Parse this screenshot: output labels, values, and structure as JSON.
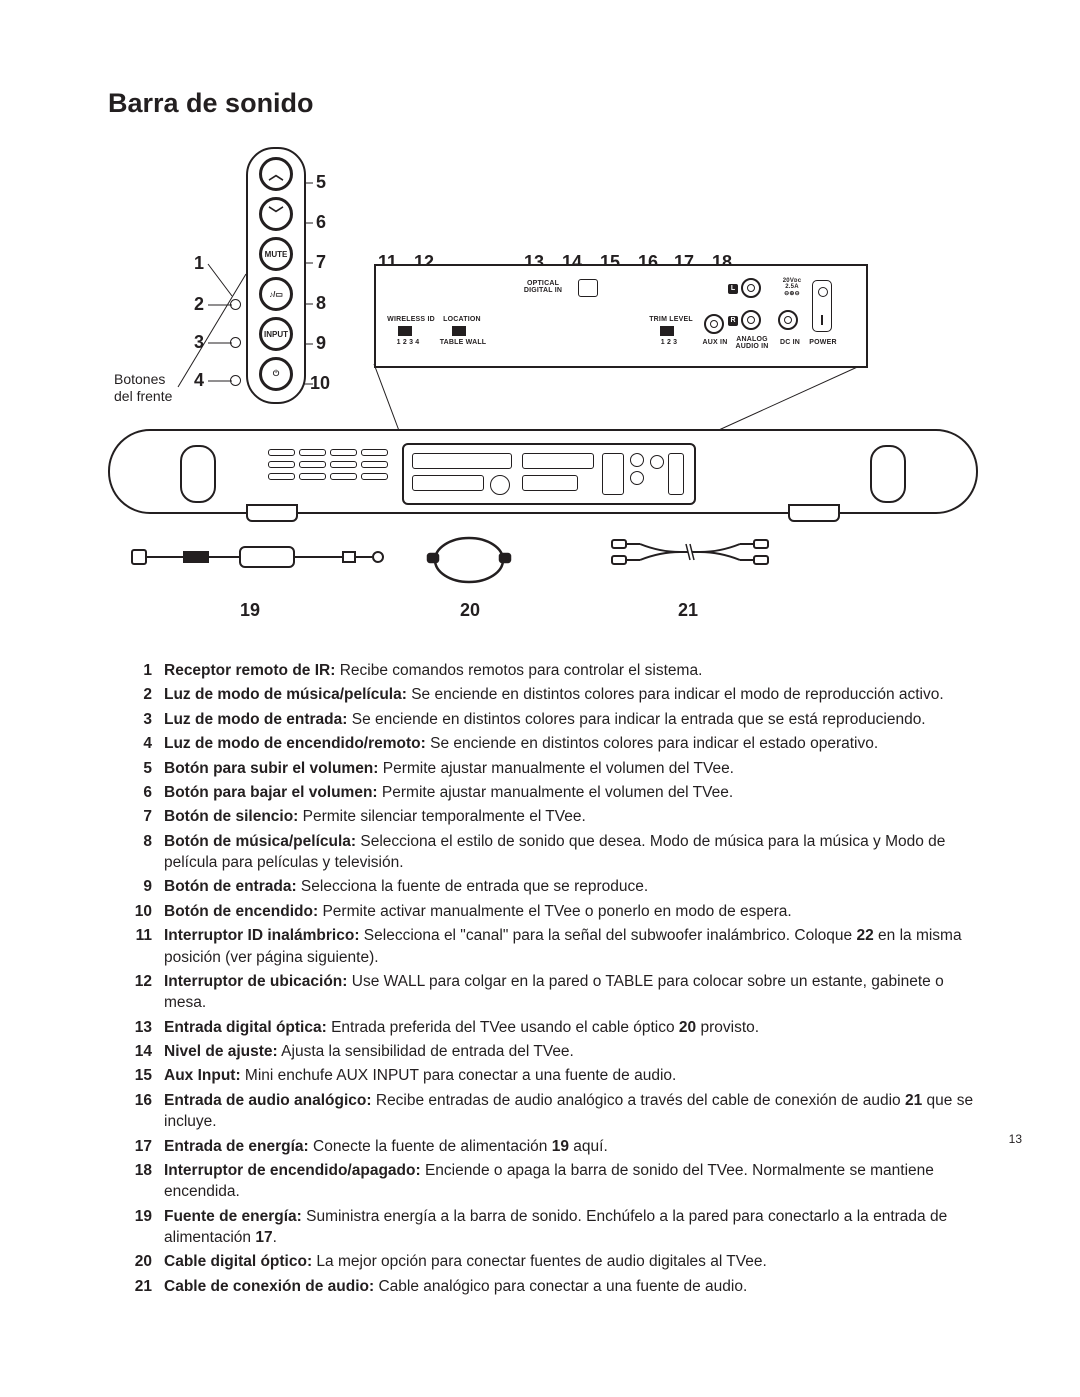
{
  "title": "Barra de sonido",
  "page_number": "13",
  "front_label": "Botones\ndel frente",
  "callouts_left": [
    "1",
    "2",
    "3",
    "4"
  ],
  "callouts_right_of_buttons": [
    "5",
    "6",
    "7",
    "8",
    "9",
    "10"
  ],
  "callouts_top": [
    "11",
    "12",
    "13",
    "14",
    "15",
    "16",
    "17",
    "18"
  ],
  "acc_numbers": [
    "19",
    "20",
    "21"
  ],
  "back_panel_labels": {
    "optical_digital_in": "OPTICAL\nDIGITAL IN",
    "wireless_id": "WIRELESS ID",
    "wireless_id_pos": "1 2 3 4",
    "location": "LOCATION",
    "location_pos": "TABLE   WALL",
    "trim_level": "TRIM LEVEL",
    "trim_level_pos": "1 2 3",
    "aux_in": "AUX IN",
    "analog_audio_in": "ANALOG\nAUDIO IN",
    "dc_in": "DC IN",
    "power": "POWER",
    "dc_spec": "20Vᴅᴄ\n2.5A\n⊖⊕⊖",
    "L": "L",
    "R": "R"
  },
  "button_labels": {
    "mute": "MUTE",
    "input": "INPUT",
    "music_movie": "♪/▭",
    "power_icon": "⏻",
    "up": "︿",
    "down": "﹀"
  },
  "items": [
    {
      "n": "1",
      "term": "Receptor remoto de IR:",
      "desc": " Recibe comandos remotos para controlar el sistema."
    },
    {
      "n": "2",
      "term": "Luz de modo de música/película:",
      "desc": " Se enciende en distintos colores para indicar el modo de reproducción activo."
    },
    {
      "n": "3",
      "term": "Luz de modo de entrada:",
      "desc": " Se enciende en distintos colores para indicar la entrada que se está reproduciendo."
    },
    {
      "n": "4",
      "term": "Luz de modo de encendido/remoto:",
      "desc": " Se enciende en distintos colores para indicar el estado operativo."
    },
    {
      "n": "5",
      "term": "Botón para subir el volumen:",
      "desc": " Permite ajustar manualmente el volumen del TVee."
    },
    {
      "n": "6",
      "term": "Botón para bajar el volumen:",
      "desc": " Permite ajustar manualmente el volumen del TVee."
    },
    {
      "n": "7",
      "term": "Botón de silencio:",
      "desc": " Permite silenciar temporalmente el TVee."
    },
    {
      "n": "8",
      "term": "Botón de música/película:",
      "desc": " Selecciona el estilo de sonido que desea. Modo de música para la música y Modo de película para películas y televisión."
    },
    {
      "n": "9",
      "term": "Botón de entrada:",
      "desc": " Selecciona la fuente de entrada que se reproduce."
    },
    {
      "n": "10",
      "term": "Botón de encendido:",
      "desc": " Permite activar manualmente el TVee o ponerlo en modo de espera."
    },
    {
      "n": "11",
      "term": "Interruptor ID inalámbrico:",
      "desc": " Selecciona el \"canal\" para la señal del subwoofer inalámbrico. Coloque ",
      "trail_bold": "22",
      "trail_after": " en la misma posición (ver página siguiente)."
    },
    {
      "n": "12",
      "term": "Interruptor de ubicación:",
      "desc": " Use WALL para colgar en la pared o TABLE para colocar sobre un estante, gabinete o mesa."
    },
    {
      "n": "13",
      "term": "Entrada digital óptica:",
      "desc": " Entrada preferida del TVee usando el cable óptico ",
      "trail_bold": "20",
      "trail_after": " provisto."
    },
    {
      "n": "14",
      "term": "Nivel de ajuste:",
      "desc": " Ajusta la sensibilidad de entrada del TVee."
    },
    {
      "n": "15",
      "term": "Aux Input:",
      "desc": " Mini enchufe AUX INPUT para conectar a una fuente de audio."
    },
    {
      "n": "16",
      "term": "Entrada de audio analógico:",
      "desc": " Recibe entradas de audio analógico a través del cable de conexión de audio ",
      "trail_bold": "21",
      "trail_after": " que se incluye."
    },
    {
      "n": "17",
      "term": "Entrada de energía:",
      "desc": " Conecte la fuente de alimentación ",
      "trail_bold": "19",
      "trail_after": " aquí."
    },
    {
      "n": "18",
      "term": "Interruptor de encendido/apagado:",
      "desc": " Enciende o apaga la barra de sonido del TVee. Normalmente se mantiene encendida."
    },
    {
      "n": "19",
      "term": "Fuente de energía:",
      "desc": " Suministra energía a la barra de sonido. Enchúfelo a la pared para conectarlo a la entrada de alimentación ",
      "trail_bold": "17",
      "trail_after": "."
    },
    {
      "n": "20",
      "term": "Cable digital óptico:",
      "desc": " La mejor opción para conectar fuentes de audio digitales al TVee."
    },
    {
      "n": "21",
      "term": "Cable de conexión de audio:",
      "desc": " Cable analógico para conectar a una fuente de audio."
    }
  ],
  "colors": {
    "ink": "#231f20",
    "bg": "#ffffff"
  }
}
